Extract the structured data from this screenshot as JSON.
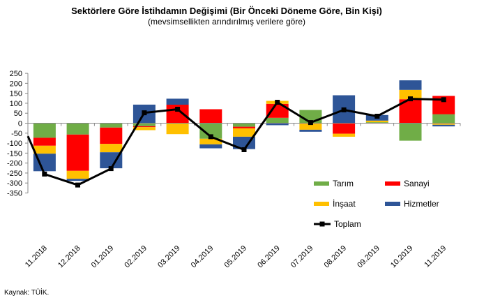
{
  "chart_data": {
    "type": "bar",
    "stacked": true,
    "title": "Sektörlere Göre İstihdamın Değişimi (Bir Önceki Döneme Göre, Bin Kişi)",
    "subtitle": "(mevsimsellikten arındırılmış  verilere göre)",
    "categories": [
      "11.2018",
      "12.2018",
      "01.2019",
      "02.2019",
      "03.2019",
      "04.2019",
      "05.2019",
      "06.2019",
      "07.2019",
      "08.2019",
      "09.2019",
      "10.2019",
      "11.2019"
    ],
    "ylim": [
      -350,
      250
    ],
    "yticks": [
      -350,
      -300,
      -250,
      -200,
      -150,
      -100,
      -50,
      0,
      50,
      100,
      150,
      200,
      250
    ],
    "grid": false,
    "legend_position": "bottom-right inside plot",
    "series": [
      {
        "name": "Tarım",
        "color": "#70ad47",
        "values": [
          -73,
          -57,
          -22,
          -15,
          0,
          -78,
          -18,
          27,
          66,
          0,
          5,
          -88,
          45
        ]
      },
      {
        "name": "Sanayi",
        "color": "#ff0000",
        "values": [
          -40,
          -182,
          -82,
          -5,
          93,
          70,
          -8,
          70,
          0,
          -53,
          -2,
          120,
          92
        ]
      },
      {
        "name": "İnşaat",
        "color": "#ffc000",
        "values": [
          -40,
          -40,
          -42,
          -15,
          -55,
          -28,
          -42,
          15,
          -33,
          -15,
          8,
          47,
          -8
        ]
      },
      {
        "name": "Hizmetler",
        "color": "#2e5597",
        "values": [
          -88,
          -10,
          -80,
          93,
          30,
          -20,
          -62,
          -10,
          -10,
          140,
          28,
          48,
          -8
        ]
      }
    ],
    "line_series": {
      "name": "Toplam",
      "color": "#000000",
      "values": [
        -255,
        -310,
        -228,
        52,
        70,
        -68,
        -133,
        105,
        3,
        67,
        35,
        122,
        118
      ],
      "lead_in_value": -65
    }
  },
  "source": "Kaynak: TÜİK."
}
